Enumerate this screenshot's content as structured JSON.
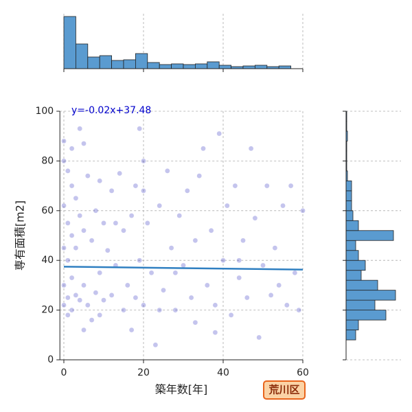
{
  "chart_data": [
    {
      "type": "scatter",
      "xlabel": "築年数[年]",
      "ylabel": "専有面積[m2]",
      "annotation": "y=-0.02x+37.48",
      "tag": "荒川区",
      "color": "#3b3bc4",
      "grid": true,
      "xlim": [
        -1,
        60
      ],
      "ylim": [
        0,
        100
      ],
      "xticks": [
        0,
        20,
        40,
        60
      ],
      "yticks": [
        0,
        20,
        40,
        60,
        80,
        100
      ],
      "x": [
        0,
        0,
        0,
        0,
        0,
        0,
        1,
        1,
        1,
        1,
        1,
        2,
        2,
        2,
        2,
        3,
        3,
        3,
        4,
        4,
        4,
        5,
        5,
        5,
        6,
        6,
        7,
        7,
        8,
        8,
        9,
        9,
        10,
        10,
        11,
        12,
        12,
        13,
        14,
        15,
        15,
        16,
        17,
        18,
        18,
        19,
        19,
        20,
        20,
        21,
        22,
        23,
        24,
        25,
        26,
        27,
        28,
        29,
        30,
        31,
        32,
        33,
        34,
        35,
        36,
        37,
        38,
        39,
        40,
        41,
        42,
        43,
        44,
        45,
        46,
        47,
        48,
        49,
        50,
        51,
        52,
        53,
        54,
        55,
        56,
        57,
        58,
        59,
        60,
        2,
        5,
        9,
        13,
        17,
        20,
        24,
        28,
        33,
        38,
        44
      ],
      "values": [
        88,
        80,
        62,
        45,
        30,
        22,
        76,
        55,
        40,
        25,
        18,
        70,
        50,
        33,
        20,
        65,
        45,
        26,
        93,
        58,
        24,
        87,
        52,
        30,
        74,
        22,
        48,
        16,
        60,
        27,
        72,
        35,
        55,
        24,
        44,
        68,
        26,
        38,
        75,
        52,
        20,
        30,
        58,
        70,
        25,
        40,
        93,
        80,
        22,
        55,
        35,
        6,
        62,
        28,
        76,
        45,
        20,
        58,
        38,
        68,
        25,
        48,
        74,
        85,
        30,
        52,
        22,
        91,
        40,
        62,
        18,
        70,
        33,
        48,
        25,
        85,
        57,
        9,
        38,
        70,
        26,
        45,
        30,
        62,
        22,
        70,
        35,
        20,
        60,
        85,
        12,
        18,
        55,
        12,
        68,
        20,
        35,
        15,
        11,
        40
      ],
      "fit": {
        "color": "#2f7fc1",
        "x": [
          0,
          60
        ],
        "values": [
          37.48,
          36.28
        ]
      }
    },
    {
      "type": "histogram",
      "orientation": "vertical",
      "color": "#5a9bd0",
      "grid": true,
      "xlim": [
        -1,
        60
      ],
      "ylim": [
        0,
        80
      ],
      "xticks": [
        0,
        20,
        40,
        60
      ],
      "bins": [
        0,
        3,
        6,
        9,
        12,
        15,
        18,
        21,
        24,
        27,
        30,
        33,
        36,
        39,
        42,
        45,
        48,
        51,
        54,
        57
      ],
      "values": [
        76,
        36,
        17,
        19,
        12,
        13,
        22,
        9,
        6,
        7,
        6,
        7,
        10,
        5,
        3,
        4,
        5,
        3,
        4
      ]
    },
    {
      "type": "histogram",
      "orientation": "horizontal",
      "color": "#5a9bd0",
      "grid": true,
      "xlim": [
        0,
        80
      ],
      "ylim": [
        0,
        100
      ],
      "yticks": [
        0,
        20,
        40,
        60,
        80,
        100
      ],
      "bins": [
        8,
        12,
        16,
        20,
        24,
        28,
        32,
        36,
        40,
        44,
        48,
        52,
        56,
        60,
        64,
        68,
        72,
        76,
        80,
        84,
        88,
        92,
        96,
        100
      ],
      "values": [
        14,
        18,
        58,
        42,
        72,
        46,
        22,
        28,
        18,
        14,
        69,
        18,
        10,
        8,
        8,
        8,
        2,
        1,
        1,
        1,
        2,
        1,
        1
      ]
    }
  ]
}
